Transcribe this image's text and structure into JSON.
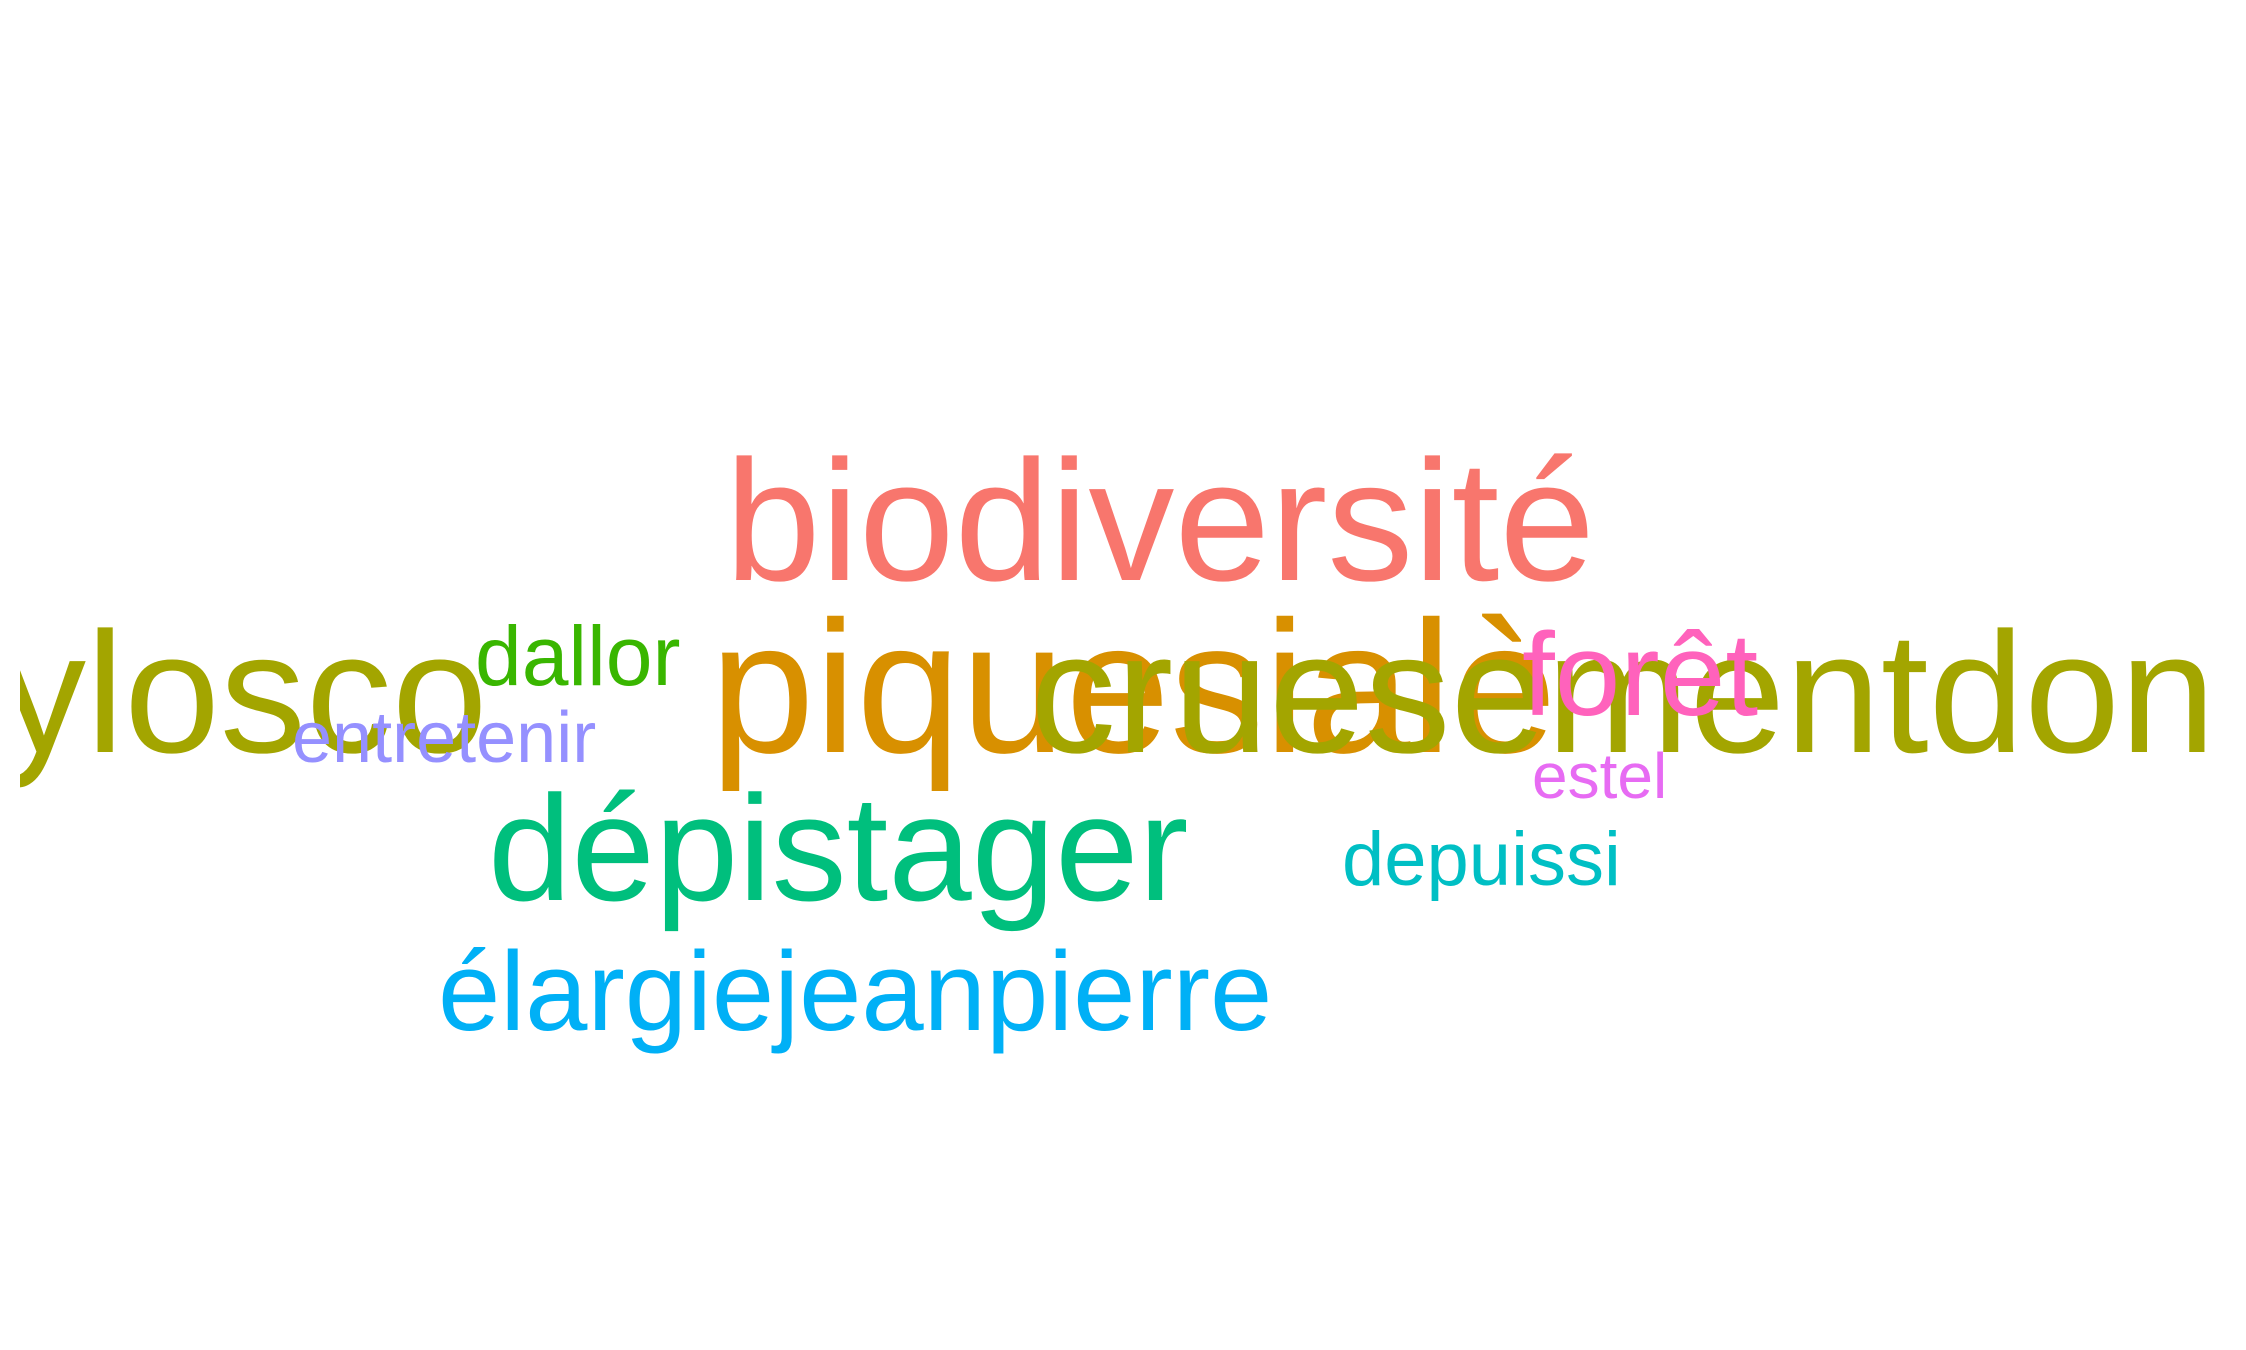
{
  "word_cloud": {
    "words": [
      {
        "id": "w1",
        "text": "biodiversité",
        "color": "#F8766D"
      },
      {
        "id": "w2",
        "text": "ylosco",
        "color": "#A3A500"
      },
      {
        "id": "w3",
        "text": "piquesialè",
        "color": "#D89000"
      },
      {
        "id": "w4",
        "text": "cruesementdons",
        "color": "#A3A500"
      },
      {
        "id": "w5",
        "text": "dallor",
        "color": "#39B600"
      },
      {
        "id": "w6",
        "text": "forêt",
        "color": "#FF62BC"
      },
      {
        "id": "w7",
        "text": "entretenir",
        "color": "#9590FF"
      },
      {
        "id": "w8",
        "text": "estel",
        "color": "#E76BF3"
      },
      {
        "id": "w9",
        "text": "dépistager",
        "color": "#00BF7D"
      },
      {
        "id": "w10",
        "text": "depuissi",
        "color": "#00BFC4"
      },
      {
        "id": "w11",
        "text": "élargiejeanpierre",
        "color": "#00B0F6"
      }
    ]
  }
}
